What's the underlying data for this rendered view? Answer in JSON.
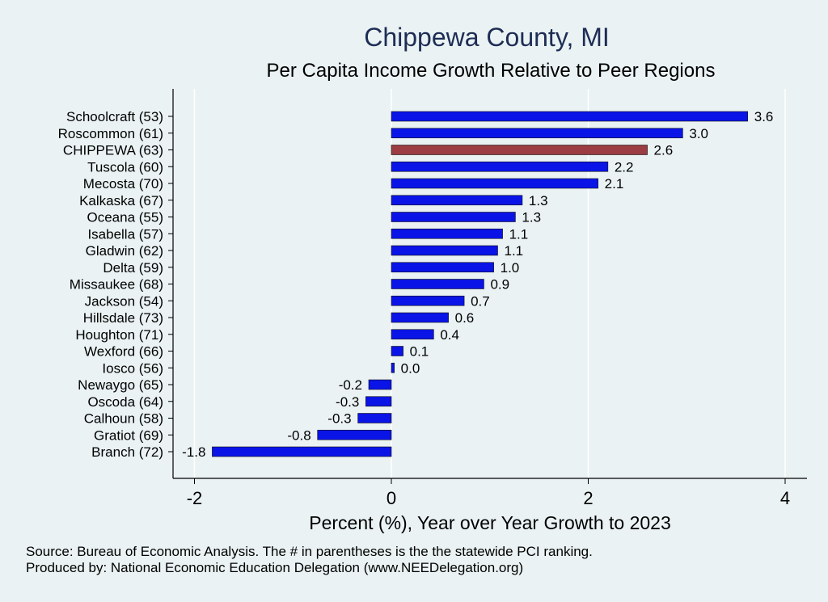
{
  "title": "Chippewa County, MI",
  "subtitle": "Per Capita Income Growth Relative to Peer Regions",
  "notes": {
    "source": "Source: Bureau of Economic Analysis. The # in parentheses is the the statewide PCI ranking.",
    "produced": "Produced by: National Economic Education Delegation (www.NEEDelegation.org)"
  },
  "colors": {
    "background": "#eaf2f3",
    "bar": "#0a14e6",
    "highlight": "#9b3d42",
    "title": "#1e2d55",
    "grid": "#ffffff"
  },
  "chart_data": {
    "type": "bar",
    "orientation": "horizontal",
    "title": "Chippewa County, MI",
    "subtitle": "Per Capita Income Growth Relative to Peer Regions",
    "xlabel": "Percent (%), Year over Year Growth to 2023",
    "ylabel": "",
    "xlim": [
      -2.2,
      4.2
    ],
    "xticks": [
      -2,
      0,
      2,
      4
    ],
    "grid": true,
    "highlight_category": "CHIPPEWA (63)",
    "categories": [
      "Schoolcraft (53)",
      "Roscommon (61)",
      "CHIPPEWA (63)",
      "Tuscola (60)",
      "Mecosta (70)",
      "Kalkaska (67)",
      "Oceana (55)",
      "Isabella (57)",
      "Gladwin (62)",
      "Delta (59)",
      "Missaukee (68)",
      "Jackson (54)",
      "Hillsdale (73)",
      "Houghton (71)",
      "Wexford (66)",
      "Iosco (56)",
      "Newaygo (65)",
      "Oscoda (64)",
      "Calhoun (58)",
      "Gratiot (69)",
      "Branch (72)"
    ],
    "values": [
      3.62,
      2.96,
      2.6,
      2.2,
      2.1,
      1.33,
      1.26,
      1.13,
      1.08,
      1.04,
      0.94,
      0.74,
      0.58,
      0.43,
      0.12,
      0.03,
      -0.23,
      -0.26,
      -0.34,
      -0.75,
      -1.82
    ],
    "value_labels": [
      "3.6",
      "3.0",
      "2.6",
      "2.2",
      "2.1",
      "1.3",
      "1.3",
      "1.1",
      "1.1",
      "1.0",
      "0.9",
      "0.7",
      "0.6",
      "0.4",
      "0.1",
      "0.0",
      "-0.2",
      "-0.3",
      "-0.3",
      "-0.8",
      "-1.8"
    ]
  }
}
